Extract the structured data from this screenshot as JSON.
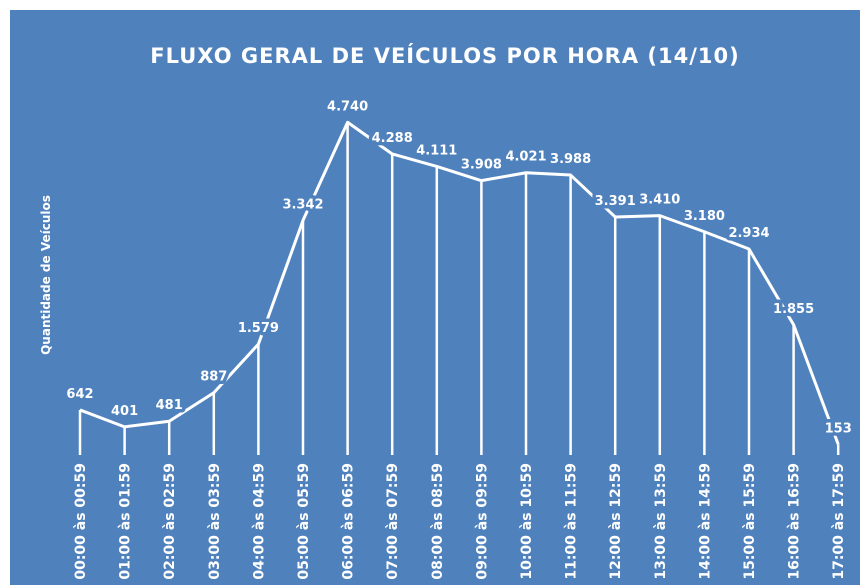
{
  "chart_data": {
    "type": "line",
    "title": "FLUXO GERAL DE VEÍCULOS POR HORA (14/10)",
    "y_label": "Quantidade de Veículos",
    "categories": [
      "00:00 às 00:59",
      "01:00 às 01:59",
      "02:00 às 02:59",
      "03:00 às 03:59",
      "04:00 às 04:59",
      "05:00 às 05:59",
      "06:00 às 06:59",
      "07:00 às 07:59",
      "08:00 às 08:59",
      "09:00 às 09:59",
      "10:00 às 10:59",
      "11:00 às 11:59",
      "12:00 às 12:59",
      "13:00 às 13:59",
      "14:00 às 14:59",
      "15:00 às 15:59",
      "16:00 às 16:59",
      "17:00 às 17:59"
    ],
    "values": [
      642,
      401,
      481,
      887,
      1579,
      3342,
      4740,
      4288,
      4111,
      3908,
      4021,
      3988,
      3391,
      3410,
      3180,
      2934,
      1855,
      153
    ],
    "value_labels": [
      "642",
      "401",
      "481",
      "887",
      "1.579",
      "3.342",
      "4.740",
      "4.288",
      "4.111",
      "3.908",
      "4.021",
      "3.988",
      "3.391",
      "3.410",
      "3.180",
      "2.934",
      "1.855",
      "153"
    ],
    "color": "#ffffff",
    "ylim": [
      0,
      5000
    ]
  }
}
